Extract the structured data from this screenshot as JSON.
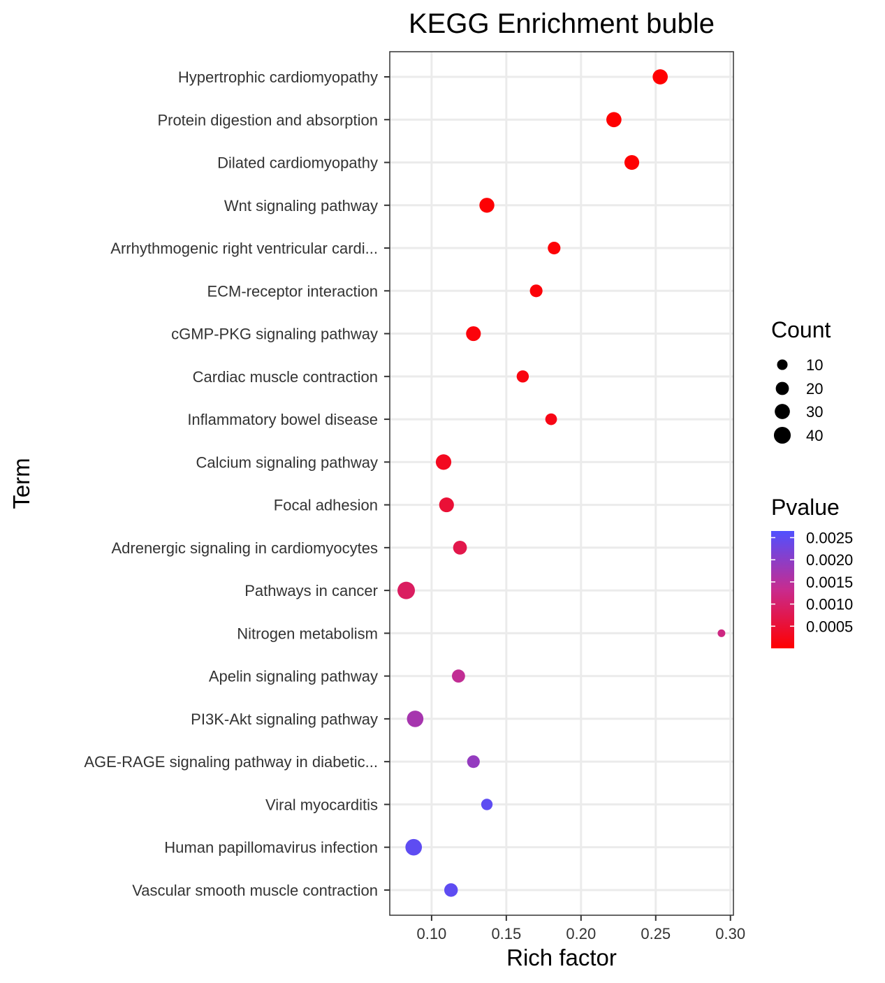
{
  "chart_data": {
    "type": "scatter",
    "title": "KEGG Enrichment buble",
    "xlabel": "Rich factor",
    "ylabel": "Term",
    "xlim": [
      0.072,
      0.302
    ],
    "x_ticks": [
      "0.10",
      "0.15",
      "0.20",
      "0.25",
      "0.30"
    ],
    "x_tick_values": [
      0.1,
      0.15,
      0.2,
      0.25,
      0.3
    ],
    "grid": true,
    "points": [
      {
        "term": "Hypertrophic cardiomyopathy",
        "rich_factor": 0.253,
        "count": 30,
        "pvalue": 1e-05
      },
      {
        "term": "Protein digestion and absorption",
        "rich_factor": 0.222,
        "count": 30,
        "pvalue": 2e-05
      },
      {
        "term": "Dilated cardiomyopathy",
        "rich_factor": 0.234,
        "count": 28,
        "pvalue": 3e-05
      },
      {
        "term": "Wnt signaling pathway",
        "rich_factor": 0.137,
        "count": 29,
        "pvalue": 4e-05
      },
      {
        "term": "Arrhythmogenic right ventricular cardi...",
        "rich_factor": 0.182,
        "count": 18,
        "pvalue": 6e-05
      },
      {
        "term": "ECM-receptor interaction",
        "rich_factor": 0.17,
        "count": 18,
        "pvalue": 8e-05
      },
      {
        "term": "cGMP-PKG signaling pathway",
        "rich_factor": 0.128,
        "count": 28,
        "pvalue": 0.0001
      },
      {
        "term": "Cardiac muscle contraction",
        "rich_factor": 0.161,
        "count": 16,
        "pvalue": 0.00015
      },
      {
        "term": "Inflammatory bowel disease",
        "rich_factor": 0.18,
        "count": 14,
        "pvalue": 0.0002
      },
      {
        "term": "Calcium signaling pathway",
        "rich_factor": 0.108,
        "count": 32,
        "pvalue": 0.0003
      },
      {
        "term": "Focal adhesion",
        "rich_factor": 0.11,
        "count": 28,
        "pvalue": 0.0005
      },
      {
        "term": "Adrenergic signaling in cardiomyocytes",
        "rich_factor": 0.119,
        "count": 23,
        "pvalue": 0.0007
      },
      {
        "term": "Pathways in cancer",
        "rich_factor": 0.083,
        "count": 44,
        "pvalue": 0.0009
      },
      {
        "term": "Nitrogen metabolism",
        "rich_factor": 0.294,
        "count": 3,
        "pvalue": 0.0012
      },
      {
        "term": "Apelin signaling pathway",
        "rich_factor": 0.118,
        "count": 20,
        "pvalue": 0.0014
      },
      {
        "term": "PI3K-Akt signaling pathway",
        "rich_factor": 0.089,
        "count": 38,
        "pvalue": 0.0017
      },
      {
        "term": "AGE-RAGE signaling pathway in diabetic...",
        "rich_factor": 0.128,
        "count": 18,
        "pvalue": 0.0019
      },
      {
        "term": "Viral myocarditis",
        "rich_factor": 0.137,
        "count": 13,
        "pvalue": 0.0025
      },
      {
        "term": "Human papillomavirus infection",
        "rich_factor": 0.088,
        "count": 38,
        "pvalue": 0.0025
      },
      {
        "term": "Vascular smooth muscle contraction",
        "rich_factor": 0.113,
        "count": 22,
        "pvalue": 0.0025
      }
    ],
    "size_legend": {
      "title": "Count",
      "values": [
        10,
        20,
        30,
        40
      ],
      "labels": [
        "10",
        "20",
        "30",
        "40"
      ]
    },
    "color_legend": {
      "title": "Pvalue",
      "min": 0.0,
      "max": 0.00265,
      "low_color": "#ff0000",
      "high_color": "#5050ff",
      "values": [
        0.0025,
        0.002,
        0.0015,
        0.001,
        0.0005
      ],
      "labels": [
        "0.0025",
        "0.0020",
        "0.0015",
        "0.0010",
        "0.0005"
      ]
    }
  }
}
